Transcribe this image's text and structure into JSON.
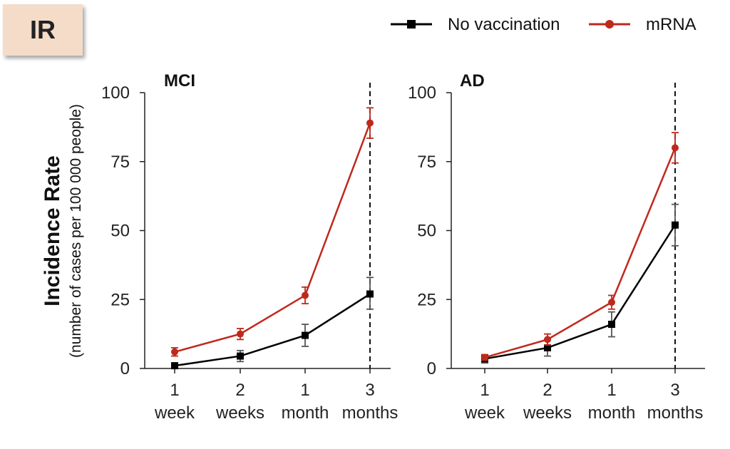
{
  "badge": {
    "label": "IR"
  },
  "legend": [
    {
      "label": "No vaccination",
      "color": "#000000",
      "marker": "square"
    },
    {
      "label": "mRNA",
      "color": "#c0281c",
      "marker": "circle"
    }
  ],
  "colors": {
    "no_vaccination": "#000000",
    "mrna": "#c0281c",
    "badge_bg": "#f4dcc8"
  },
  "chart_data": [
    {
      "type": "line",
      "title": "MCI",
      "ylabel": "Incidence Rate",
      "ylabel_sub": "(number of cases per 100 000 people)",
      "categories": [
        [
          "1",
          "week"
        ],
        [
          "2",
          "weeks"
        ],
        [
          "1",
          "month"
        ],
        [
          "3",
          "months"
        ]
      ],
      "ylim": [
        0,
        100
      ],
      "yticks": [
        0,
        25,
        50,
        75,
        100
      ],
      "vertical_dashed_line_at": "3 months",
      "series": [
        {
          "name": "No vaccination",
          "values": [
            1,
            4.5,
            12,
            27
          ],
          "err_low": [
            0.5,
            2,
            4,
            5.5
          ],
          "err_high": [
            0.5,
            2,
            4,
            6
          ]
        },
        {
          "name": "mRNA",
          "values": [
            6,
            12.5,
            26.5,
            89
          ],
          "err_low": [
            1.5,
            2,
            3,
            5.5
          ],
          "err_high": [
            1.5,
            2,
            3,
            5.5
          ]
        }
      ]
    },
    {
      "type": "line",
      "title": "AD",
      "ylabel": "",
      "categories": [
        [
          "1",
          "week"
        ],
        [
          "2",
          "weeks"
        ],
        [
          "1",
          "month"
        ],
        [
          "3",
          "months"
        ]
      ],
      "ylim": [
        0,
        100
      ],
      "yticks": [
        0,
        25,
        50,
        75,
        100
      ],
      "vertical_dashed_line_at": "3 months",
      "series": [
        {
          "name": "No vaccination",
          "values": [
            3.5,
            7.5,
            16,
            52
          ],
          "err_low": [
            1.5,
            3,
            4.5,
            7.5
          ],
          "err_high": [
            1.5,
            3,
            4.5,
            7.5
          ]
        },
        {
          "name": "mRNA",
          "values": [
            4,
            10.5,
            24,
            80
          ],
          "err_low": [
            1,
            2,
            2.5,
            5.5
          ],
          "err_high": [
            1,
            2,
            2.5,
            5.5
          ]
        }
      ]
    }
  ]
}
